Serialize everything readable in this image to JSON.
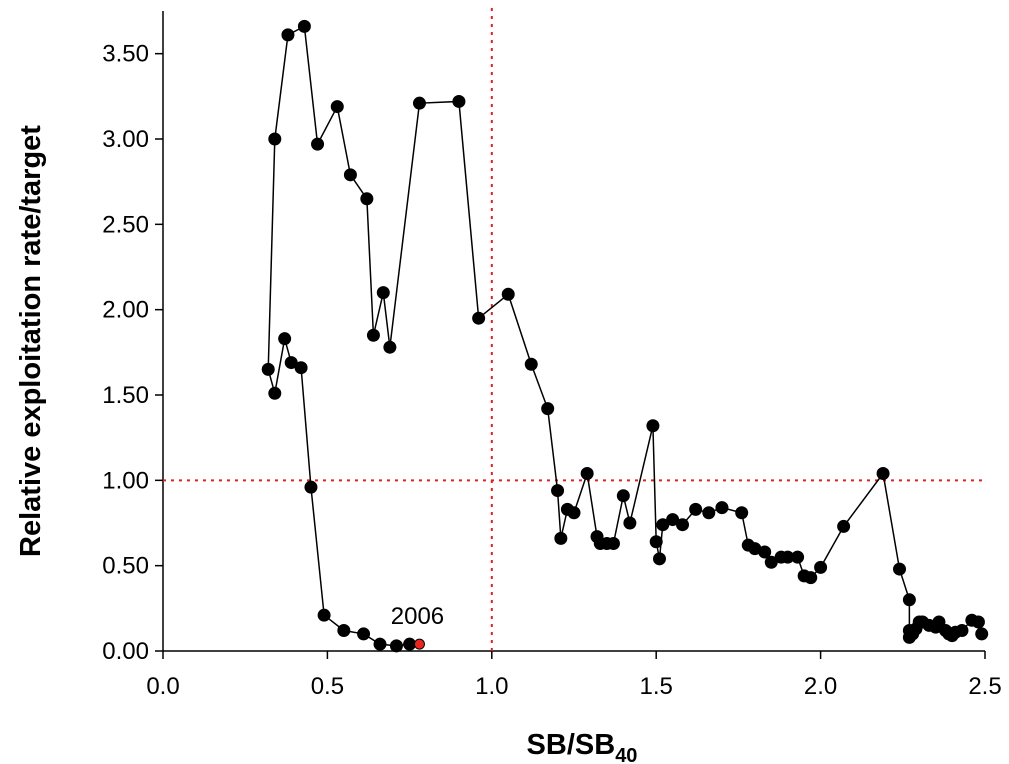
{
  "chart_data": {
    "type": "scatter",
    "x_label": {
      "text": "SB/SB",
      "subscript": "40"
    },
    "y_label": "Relative exploitation rate/target",
    "xlim": [
      0,
      2.5
    ],
    "ylim": [
      0,
      3.75
    ],
    "xticks": [
      {
        "value": 0,
        "label": "0.0"
      },
      0.5,
      {
        "value": 1,
        "label": "1.0"
      },
      1.5,
      {
        "value": 2,
        "label": "2.0"
      },
      2.5
    ],
    "yticks": [
      {
        "value": 0,
        "label": "0.00"
      },
      {
        "value": 0.5,
        "label": "0.50"
      },
      {
        "value": 1,
        "label": "1.00"
      },
      {
        "value": 1.5,
        "label": "1.50"
      },
      {
        "value": 2,
        "label": "2.00"
      },
      {
        "value": 2.5,
        "label": "2.50"
      },
      {
        "value": 3,
        "label": "3.00"
      },
      {
        "value": 3.5,
        "label": "3.50"
      }
    ],
    "connect_points": true,
    "reference_lines": {
      "x": 1,
      "y": 1,
      "color": "#e02020"
    },
    "color": "#000000",
    "highlight_color": "#e8251e",
    "annotation": "2006",
    "x": [
      2.49,
      2.48,
      2.46,
      2.43,
      2.41,
      2.4,
      2.39,
      2.38,
      2.36,
      2.35,
      2.33,
      2.31,
      2.3,
      2.29,
      2.28,
      2.27,
      2.27,
      2.27,
      2.24,
      2.19,
      2.07,
      2.0,
      1.97,
      1.95,
      1.93,
      1.9,
      1.88,
      1.85,
      1.83,
      1.8,
      1.78,
      1.76,
      1.7,
      1.66,
      1.62,
      1.58,
      1.55,
      1.52,
      1.51,
      1.5,
      1.49,
      1.42,
      1.4,
      1.37,
      1.35,
      1.33,
      1.32,
      1.29,
      1.25,
      1.23,
      1.21,
      1.2,
      1.17,
      1.12,
      1.05,
      0.96,
      0.9,
      0.78,
      0.69,
      0.67,
      0.64,
      0.62,
      0.57,
      0.53,
      0.47,
      0.43,
      0.38,
      0.34,
      0.32,
      0.34,
      0.37,
      0.39,
      0.42,
      0.45,
      0.49,
      0.55,
      0.61,
      0.66,
      0.71,
      0.75,
      0.78
    ],
    "values": [
      0.1,
      0.17,
      0.18,
      0.12,
      0.11,
      0.09,
      0.1,
      0.12,
      0.17,
      0.14,
      0.15,
      0.17,
      0.17,
      0.13,
      0.1,
      0.08,
      0.12,
      0.3,
      0.48,
      1.04,
      0.73,
      0.49,
      0.43,
      0.44,
      0.55,
      0.55,
      0.55,
      0.52,
      0.58,
      0.6,
      0.62,
      0.81,
      0.84,
      0.81,
      0.83,
      0.74,
      0.77,
      0.74,
      0.54,
      0.64,
      1.32,
      0.75,
      0.91,
      0.63,
      0.63,
      0.63,
      0.67,
      1.04,
      0.81,
      0.83,
      0.66,
      0.94,
      1.42,
      1.68,
      2.09,
      1.95,
      3.22,
      3.21,
      1.78,
      2.1,
      1.85,
      2.65,
      2.79,
      3.19,
      2.97,
      3.66,
      3.61,
      3.0,
      1.65,
      1.51,
      1.83,
      1.69,
      1.66,
      0.96,
      0.21,
      0.12,
      0.1,
      0.04,
      0.03,
      0.04,
      0.04
    ]
  }
}
